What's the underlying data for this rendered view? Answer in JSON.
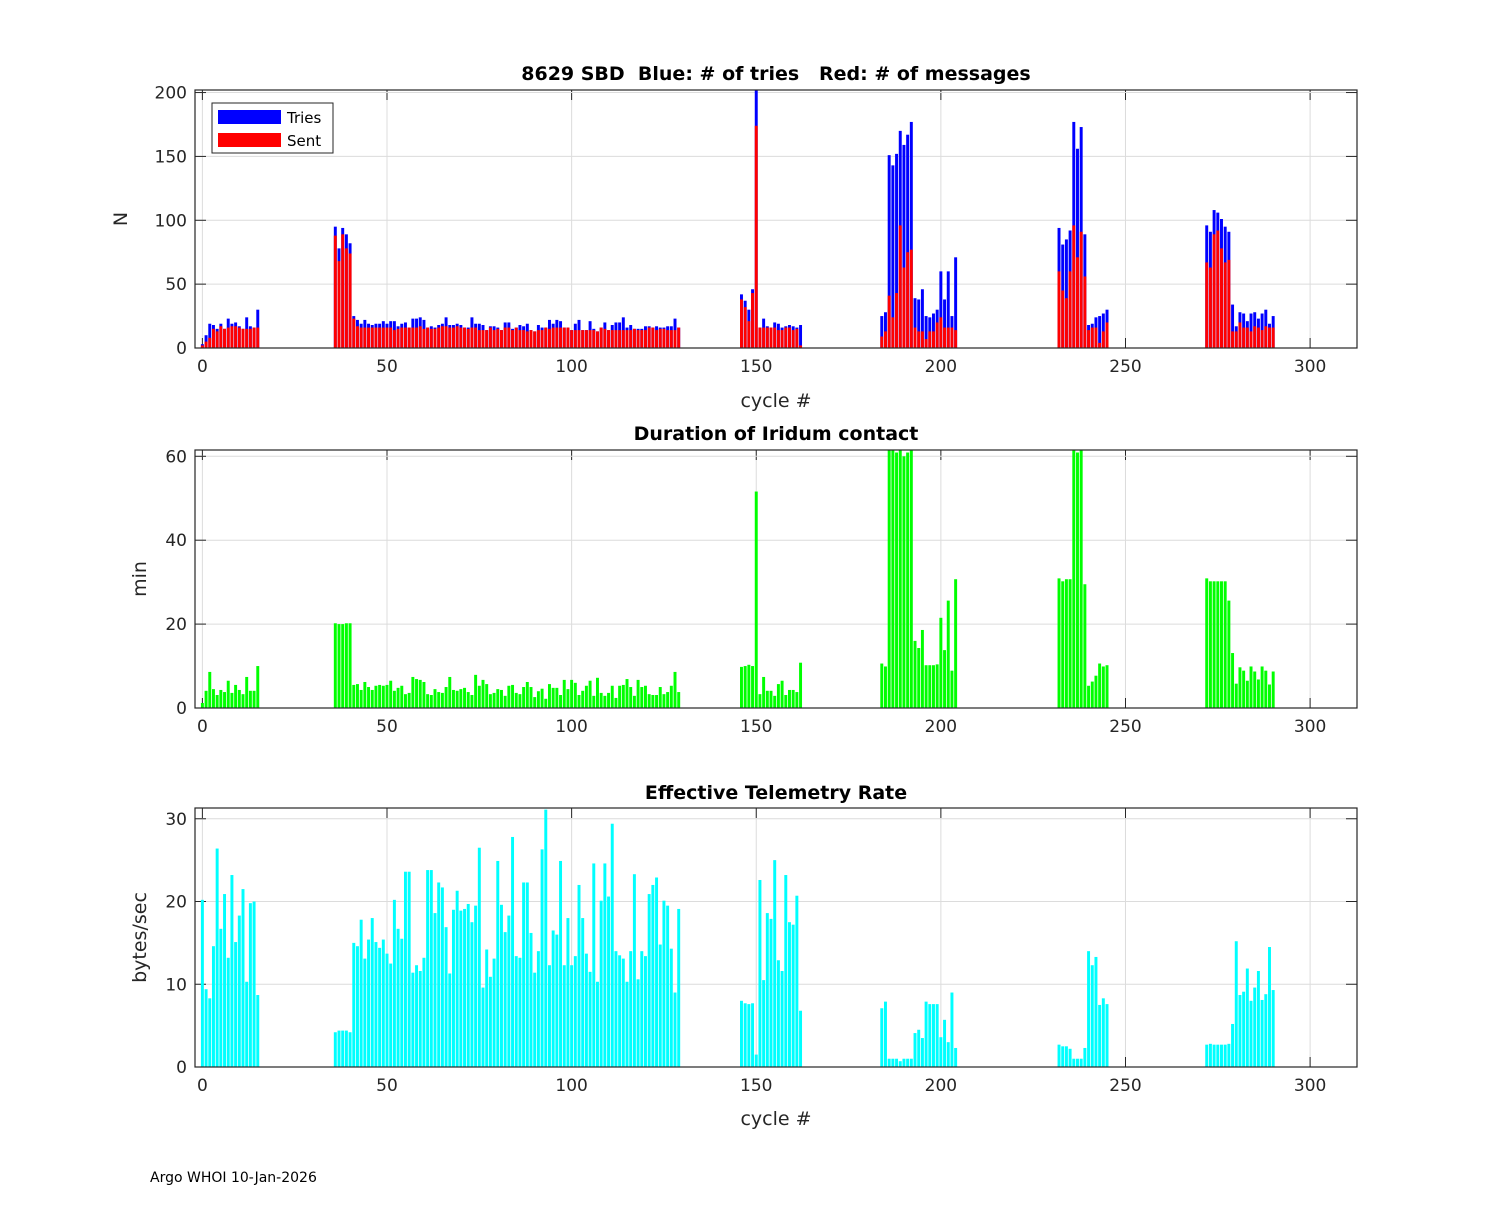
{
  "footer": "Argo WHOI 10-Jan-2026",
  "colors": {
    "tries": "#0000ff",
    "sent": "#ff0000",
    "duration": "#00ff00",
    "rate": "#00ffff"
  },
  "chart_data": [
    {
      "type": "bar",
      "title": "8629 SBD  Blue: # of tries   Red: # of messages",
      "xlabel": "cycle #",
      "ylabel": "N",
      "xlim": [
        -2,
        312.7
      ],
      "ylim": [
        0,
        202
      ],
      "xticks": [
        "0",
        "50",
        "100",
        "150",
        "200",
        "250",
        "300"
      ],
      "yticks": [
        "0",
        "50",
        "100",
        "150",
        "200"
      ],
      "grid": true,
      "legend": {
        "placement": "top-left",
        "entries": [
          "Tries",
          "Sent"
        ]
      },
      "series": [
        {
          "name": "Tries",
          "color_key": "tries",
          "segments": [
            {
              "start_cycle": 0,
              "values": [
                3,
                10,
                19,
                18,
                15,
                19,
                15,
                23,
                19,
                20,
                17,
                15,
                24,
                17,
                16,
                30
              ]
            },
            {
              "start_cycle": 36,
              "values": [
                95,
                78,
                94,
                89,
                82,
                25,
                22,
                19,
                22,
                19,
                18,
                19,
                19,
                21,
                19,
                21,
                21,
                17,
                19,
                20,
                16,
                23,
                23,
                24,
                22,
                16,
                17,
                16,
                18,
                19,
                24,
                18,
                18,
                19,
                18,
                16,
                16,
                24,
                19,
                19,
                18,
                14,
                17,
                17,
                16,
                14,
                20,
                20,
                15,
                16,
                18,
                17,
                19,
                14,
                13,
                18,
                16,
                16,
                22,
                19,
                22,
                21,
                16,
                16,
                14,
                19,
                22,
                14,
                14,
                21,
                15,
                13,
                16,
                20,
                14,
                18,
                20,
                20,
                24,
                16,
                18,
                15,
                15,
                15,
                17,
                17,
                16,
                17,
                16,
                16,
                17,
                17,
                23,
                16
              ]
            },
            {
              "start_cycle": 146,
              "values": [
                42,
                37,
                30,
                46,
                220,
                16,
                23,
                17,
                16,
                20,
                19,
                16,
                17,
                18,
                17,
                16,
                18
              ]
            },
            {
              "start_cycle": 184,
              "values": [
                25,
                28,
                151,
                143,
                152,
                170,
                159,
                167,
                177,
                39,
                38,
                46,
                25,
                24,
                27,
                30,
                60,
                38,
                60,
                25,
                71
              ]
            },
            {
              "start_cycle": 232,
              "values": [
                94,
                81,
                85,
                92,
                177,
                156,
                173,
                89,
                18,
                19,
                24,
                25,
                27,
                30
              ]
            },
            {
              "start_cycle": 272,
              "values": [
                96,
                91,
                108,
                106,
                101,
                95,
                91,
                34,
                17,
                28,
                27,
                21,
                27,
                28,
                23,
                27,
                30,
                19,
                25
              ]
            }
          ]
        },
        {
          "name": "Sent",
          "color_key": "sent",
          "segments": [
            {
              "start_cycle": 0,
              "values": [
                2,
                5,
                8,
                15,
                13,
                17,
                15,
                16,
                17,
                17,
                16,
                15,
                15,
                15,
                16,
                16
              ]
            },
            {
              "start_cycle": 36,
              "values": [
                88,
                68,
                89,
                78,
                74,
                23,
                17,
                16,
                16,
                16,
                16,
                16,
                16,
                16,
                16,
                16,
                14,
                15,
                16,
                16,
                16,
                16,
                16,
                17,
                15,
                16,
                15,
                15,
                16,
                17,
                17,
                16,
                16,
                17,
                16,
                16,
                15,
                16,
                16,
                14,
                14,
                14,
                16,
                14,
                15,
                14,
                16,
                16,
                14,
                16,
                14,
                14,
                13,
                14,
                13,
                14,
                14,
                16,
                15,
                16,
                16,
                16,
                16,
                16,
                14,
                14,
                14,
                14,
                14,
                14,
                14,
                13,
                16,
                15,
                14,
                14,
                14,
                14,
                14,
                14,
                14,
                15,
                14,
                14,
                14,
                16,
                16,
                14,
                15,
                15,
                14,
                14,
                14,
                16
              ]
            },
            {
              "start_cycle": 146,
              "values": [
                38,
                32,
                21,
                43,
                174,
                16,
                16,
                16,
                16,
                16,
                14,
                14,
                16,
                16,
                14,
                15,
                2
              ]
            },
            {
              "start_cycle": 184,
              "values": [
                9,
                13,
                41,
                24,
                43,
                96,
                63,
                75,
                77,
                16,
                13,
                13,
                7,
                13,
                13,
                20,
                24,
                16,
                16,
                16,
                14
              ]
            },
            {
              "start_cycle": 232,
              "values": [
                60,
                45,
                39,
                60,
                96,
                71,
                91,
                56,
                14,
                16,
                16,
                4,
                13,
                20
              ]
            },
            {
              "start_cycle": 272,
              "values": [
                67,
                63,
                89,
                92,
                78,
                67,
                69,
                13,
                13,
                20,
                16,
                16,
                13,
                17,
                16,
                14,
                17,
                16,
                16
              ]
            }
          ]
        }
      ]
    },
    {
      "type": "bar",
      "title": "Duration of Iridum contact",
      "xlabel": "",
      "ylabel": "min",
      "xlim": [
        -2,
        312.7
      ],
      "ylim": [
        0,
        61.5
      ],
      "xticks": [
        "0",
        "50",
        "100",
        "150",
        "200",
        "250",
        "300"
      ],
      "yticks": [
        "0",
        "20",
        "40",
        "60"
      ],
      "grid": true,
      "series": [
        {
          "name": "Duration",
          "color_key": "duration",
          "segments": [
            {
              "start_cycle": 0,
              "values": [
                1.2,
                4.1,
                8.6,
                4.5,
                3.1,
                4.3,
                3.8,
                6.5,
                3.6,
                5.5,
                4.3,
                3.3,
                7.4,
                4.1,
                4.1,
                10.0
              ]
            },
            {
              "start_cycle": 36,
              "values": [
                20.2,
                20.0,
                20.0,
                20.2,
                20.2,
                5.5,
                5.7,
                4.3,
                6.2,
                5.0,
                4.3,
                5.3,
                5.5,
                5.3,
                5.5,
                6.5,
                4.1,
                4.8,
                5.3,
                3.3,
                3.6,
                7.4,
                6.9,
                6.7,
                6.2,
                3.3,
                3.1,
                4.5,
                3.8,
                3.6,
                5.0,
                7.4,
                4.3,
                4.1,
                4.5,
                4.8,
                3.8,
                3.1,
                7.9,
                5.3,
                6.7,
                5.7,
                3.3,
                3.6,
                4.5,
                4.3,
                2.9,
                5.3,
                5.5,
                3.6,
                3.3,
                5.0,
                6.2,
                5.0,
                2.6,
                4.0,
                4.6,
                2.2,
                5.7,
                4.8,
                4.8,
                3.1,
                6.7,
                4.5,
                6.7,
                6.0,
                3.1,
                4.1,
                5.3,
                6.5,
                2.9,
                7.2,
                3.6,
                2.9,
                3.6,
                5.3,
                2.4,
                5.3,
                5.5,
                6.9,
                5.0,
                2.9,
                6.7,
                5.0,
                5.3,
                3.3,
                3.1,
                3.1,
                5.0,
                3.3,
                3.8,
                5.3,
                8.6,
                3.8
              ]
            },
            {
              "start_cycle": 146,
              "values": [
                9.8,
                10.0,
                10.3,
                10.0,
                51.6,
                3.3,
                7.4,
                4.1,
                4.1,
                2.9,
                5.7,
                6.5,
                3.1,
                4.3,
                4.3,
                3.8,
                10.8
              ]
            },
            {
              "start_cycle": 184,
              "values": [
                10.6,
                9.9,
                61.4,
                61.8,
                60.9,
                61.8,
                60.0,
                60.9,
                61.6,
                16.0,
                14.3,
                18.6,
                10.2,
                10.2,
                10.2,
                10.4,
                21.5,
                13.8,
                25.6,
                8.9,
                30.7
              ]
            },
            {
              "start_cycle": 232,
              "values": [
                30.9,
                30.2,
                30.7,
                30.7,
                61.6,
                60.9,
                61.4,
                29.5,
                5.3,
                6.3,
                7.7,
                10.6,
                9.9,
                10.2
              ]
            },
            {
              "start_cycle": 272,
              "values": [
                30.9,
                30.2,
                30.2,
                30.2,
                30.2,
                30.2,
                25.6,
                13.1,
                5.8,
                9.7,
                8.9,
                6.5,
                9.9,
                8.7,
                6.8,
                9.9,
                8.9,
                5.6,
                8.7
              ]
            }
          ]
        }
      ]
    },
    {
      "type": "bar",
      "title": "Effective Telemetry Rate",
      "xlabel": "cycle #",
      "ylabel": "bytes/sec",
      "xlim": [
        -2,
        312.7
      ],
      "ylim": [
        0,
        31.3
      ],
      "xticks": [
        "0",
        "50",
        "100",
        "150",
        "200",
        "250",
        "300"
      ],
      "yticks": [
        "0",
        "10",
        "20",
        "30"
      ],
      "grid": true,
      "series": [
        {
          "name": "Rate",
          "color_key": "rate",
          "segments": [
            {
              "start_cycle": 0,
              "values": [
                20.2,
                9.4,
                8.3,
                14.6,
                26.4,
                16.7,
                20.9,
                13.2,
                23.2,
                15.1,
                18.3,
                21.5,
                10.3,
                19.8,
                20.0,
                8.7
              ]
            },
            {
              "start_cycle": 36,
              "values": [
                4.2,
                4.4,
                4.4,
                4.4,
                4.2,
                15.0,
                14.6,
                17.8,
                13.1,
                15.4,
                18.0,
                15.1,
                14.4,
                15.4,
                13.7,
                12.5,
                20.2,
                16.7,
                15.5,
                23.6,
                23.6,
                11.4,
                12.3,
                11.6,
                13.2,
                23.8,
                23.8,
                18.6,
                22.3,
                21.7,
                16.9,
                11.3,
                19.0,
                21.3,
                18.9,
                19.1,
                19.7,
                17.5,
                19.5,
                26.5,
                9.6,
                14.2,
                10.9,
                13.1,
                24.9,
                19.6,
                16.3,
                18.3,
                27.8,
                13.4,
                13.2,
                22.3,
                22.3,
                16.2,
                11.4,
                14.0,
                26.3,
                31.1,
                12.3,
                16.5,
                16.0,
                24.9,
                12.3,
                18.0,
                12.3,
                13.4,
                22.0,
                18.0,
                13.7,
                11.5,
                24.6,
                10.3,
                20.1,
                24.6,
                20.6,
                29.4,
                14.0,
                13.5,
                13.1,
                10.3,
                14.0,
                23.3,
                10.6,
                14.0,
                13.4,
                20.9,
                22.0,
                22.9,
                14.8,
                20.1,
                19.5,
                14.3,
                9.0,
                19.1
              ]
            },
            {
              "start_cycle": 146,
              "values": [
                8.0,
                7.7,
                7.6,
                7.7,
                1.5,
                22.6,
                10.5,
                18.6,
                17.9,
                25.0,
                12.9,
                11.6,
                23.2,
                17.5,
                17.2,
                20.7,
                6.8
              ]
            },
            {
              "start_cycle": 184,
              "values": [
                7.1,
                7.9,
                1.0,
                1.0,
                1.0,
                0.7,
                1.0,
                1.0,
                1.0,
                4.1,
                4.5,
                3.5,
                7.9,
                7.6,
                7.6,
                7.6,
                3.6,
                5.7,
                3.0,
                9.0,
                2.3
              ]
            },
            {
              "start_cycle": 232,
              "values": [
                2.7,
                2.5,
                2.5,
                2.2,
                1.0,
                1.0,
                1.0,
                2.3,
                14.0,
                12.3,
                13.3,
                7.5,
                8.3,
                7.6
              ]
            },
            {
              "start_cycle": 272,
              "values": [
                2.7,
                2.8,
                2.7,
                2.7,
                2.7,
                2.7,
                2.8,
                5.2,
                15.2,
                8.7,
                9.1,
                11.9,
                8.0,
                9.6,
                11.6,
                8.1,
                8.8,
                14.5,
                9.3
              ]
            }
          ]
        }
      ]
    }
  ]
}
